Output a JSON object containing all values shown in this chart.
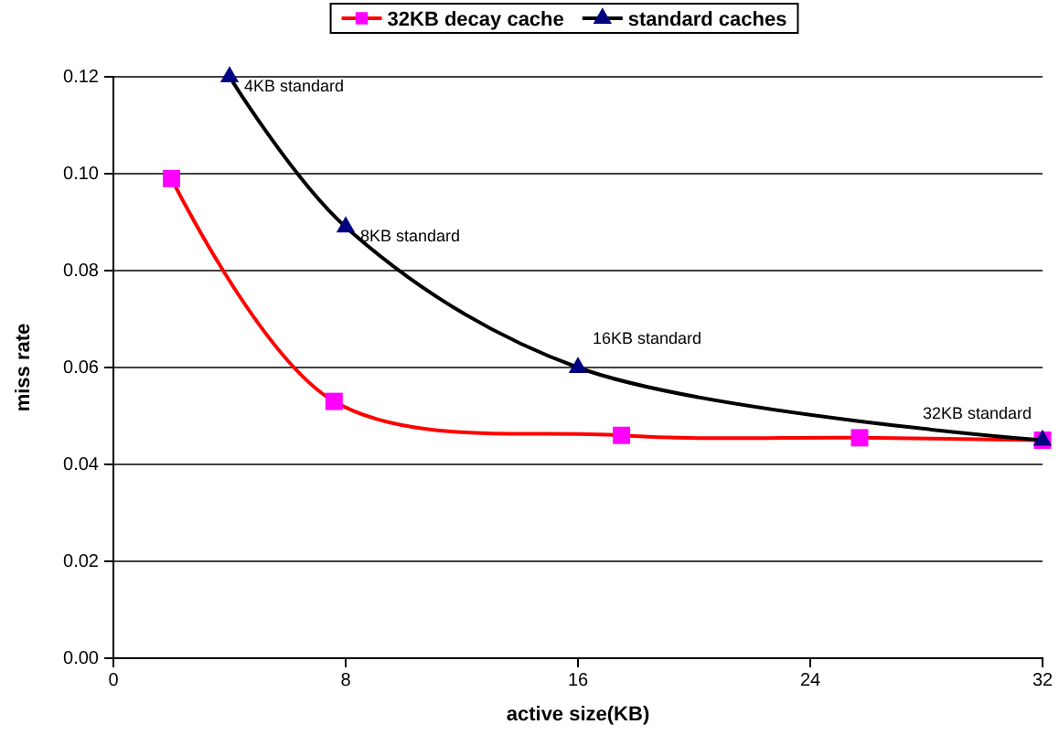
{
  "chart_data": {
    "type": "line",
    "xlabel": "active size(KB)",
    "ylabel": "miss rate",
    "xlim": [
      0,
      32
    ],
    "xticks": [
      0,
      8,
      16,
      24,
      32
    ],
    "ylim": [
      0,
      0.12
    ],
    "yticks": [
      {
        "value": 0,
        "label": "0.00"
      },
      {
        "value": 0.02,
        "label": "0.02"
      },
      {
        "value": 0.04,
        "label": "0.04"
      },
      {
        "value": 0.06,
        "label": "0.06"
      },
      {
        "value": 0.08,
        "label": "0.08"
      },
      {
        "value": 0.1,
        "label": "0.10"
      },
      {
        "value": 0.12,
        "label": "0.12"
      }
    ],
    "grid": "y",
    "legend": "top",
    "series": [
      {
        "name": "32KB decay cache",
        "color": "#ff0000",
        "marker": "square",
        "x": [
          2,
          7.6,
          17.5,
          25.7,
          32
        ],
        "values": [
          0.099,
          0.053,
          0.046,
          0.0455,
          0.045
        ]
      },
      {
        "name": "standard caches",
        "color": "#000000",
        "marker": "triangle",
        "x": [
          4,
          8,
          16,
          32
        ],
        "values": [
          0.12,
          0.089,
          0.06,
          0.045
        ]
      }
    ],
    "annotations": [
      {
        "text": "4KB standard",
        "x": 4,
        "y": 0.12
      },
      {
        "text": "8KB standard",
        "x": 8,
        "y": 0.089
      },
      {
        "text": "16KB standard",
        "x": 16,
        "y": 0.06
      },
      {
        "text": "32KB standard",
        "x": 32,
        "y": 0.045
      }
    ]
  }
}
